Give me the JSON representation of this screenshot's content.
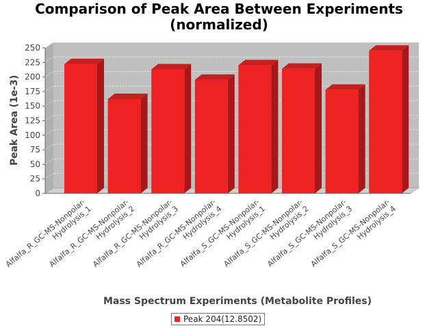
{
  "chart_data": {
    "type": "bar",
    "title": "Comparison of Peak Area Between Experiments",
    "subtitle": "(normalized)",
    "xlabel": "Mass Spectrum Experiments (Metabolite Profiles)",
    "ylabel": "Peak Area (1e-3)",
    "categories": [
      "Alfalfa_R_GC-MS-Nonpolar-Hydrolysis_1",
      "Alfalfa_R_GC-MS-Nonpolar-Hydrolysis_2",
      "Alfalfa_R_GC-MS-Nonpolar-Hydrolysis_3",
      "Alfalfa_R_GC-MS-Nonpolar-Hydrolysis_4",
      "Alfalfa_S_GC-MS-Nonpolar-Hydrolysis_1",
      "Alfalfa_S_GC-MS-Nonpolar-Hydrolysis_2",
      "Alfalfa_S_GC-MS-Nonpolar-Hydrolysis_3",
      "Alfalfa_S_GC-MS-Nonpolar-Hydrolysis_4"
    ],
    "category_lines": [
      [
        "Alfalfa_R_GC-MS-Nonpolar-",
        "Hydrolysis_1"
      ],
      [
        "Alfalfa_R_GC-MS-Nonpolar-",
        "Hydrolysis_2"
      ],
      [
        "Alfalfa_R_GC-MS-Nonpolar-",
        "Hydrolysis_3"
      ],
      [
        "Alfalfa_R_GC-MS-Nonpolar-",
        "Hydrolysis_4"
      ],
      [
        "Alfalfa_S_GC-MS-Nonpolar-",
        "Hydrolysis_1"
      ],
      [
        "Alfalfa_S_GC-MS-Nonpolar-",
        "Hydrolysis_2"
      ],
      [
        "Alfalfa_S_GC-MS-Nonpolar-",
        "Hydrolysis_3"
      ],
      [
        "Alfalfa_S_GC-MS-Nonpolar-",
        "Hydrolysis_4"
      ]
    ],
    "series": [
      {
        "name": "Peak 204(12.8502)",
        "values": [
          222,
          162,
          213,
          195,
          220,
          214,
          178,
          245
        ]
      }
    ],
    "ylim": [
      0,
      250
    ],
    "yticks": [
      0,
      25,
      50,
      75,
      100,
      125,
      150,
      175,
      200,
      225,
      250
    ],
    "grid": true,
    "legend": "bottom-center",
    "colors": {
      "bar": "#ee2222",
      "bar_top": "#c42020",
      "bar_side": "#a81818",
      "plot_bg": "#c0c0c0",
      "plot_wall": "#b0b0b0",
      "plot_floor": "#d0d0d0"
    }
  }
}
